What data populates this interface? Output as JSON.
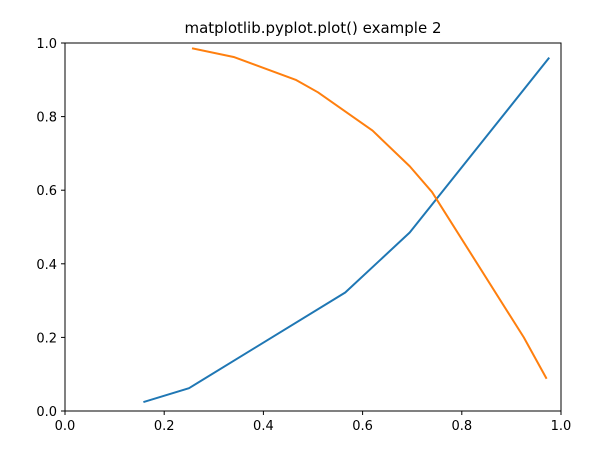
{
  "chart_data": {
    "type": "line",
    "title": "matplotlib.pyplot.plot() example 2",
    "xlabel": "",
    "ylabel": "",
    "xlim": [
      0.0,
      1.0
    ],
    "ylim": [
      0.0,
      1.0
    ],
    "xticks": [
      "0.0",
      "0.2",
      "0.4",
      "0.6",
      "0.8",
      "1.0"
    ],
    "yticks": [
      "0.0",
      "0.2",
      "0.4",
      "0.6",
      "0.8",
      "1.0"
    ],
    "grid": false,
    "legend": "none",
    "series": [
      {
        "color": "#1f77b4",
        "x": [
          0.16,
          0.25,
          0.565,
          0.695,
          0.975
        ],
        "y": [
          0.025,
          0.062,
          0.322,
          0.485,
          0.958
        ]
      },
      {
        "color": "#ff7f0e",
        "x": [
          0.258,
          0.34,
          0.465,
          0.51,
          0.62,
          0.695,
          0.74,
          0.925,
          0.97
        ],
        "y": [
          0.985,
          0.962,
          0.9,
          0.866,
          0.762,
          0.665,
          0.595,
          0.2,
          0.09
        ]
      }
    ]
  }
}
